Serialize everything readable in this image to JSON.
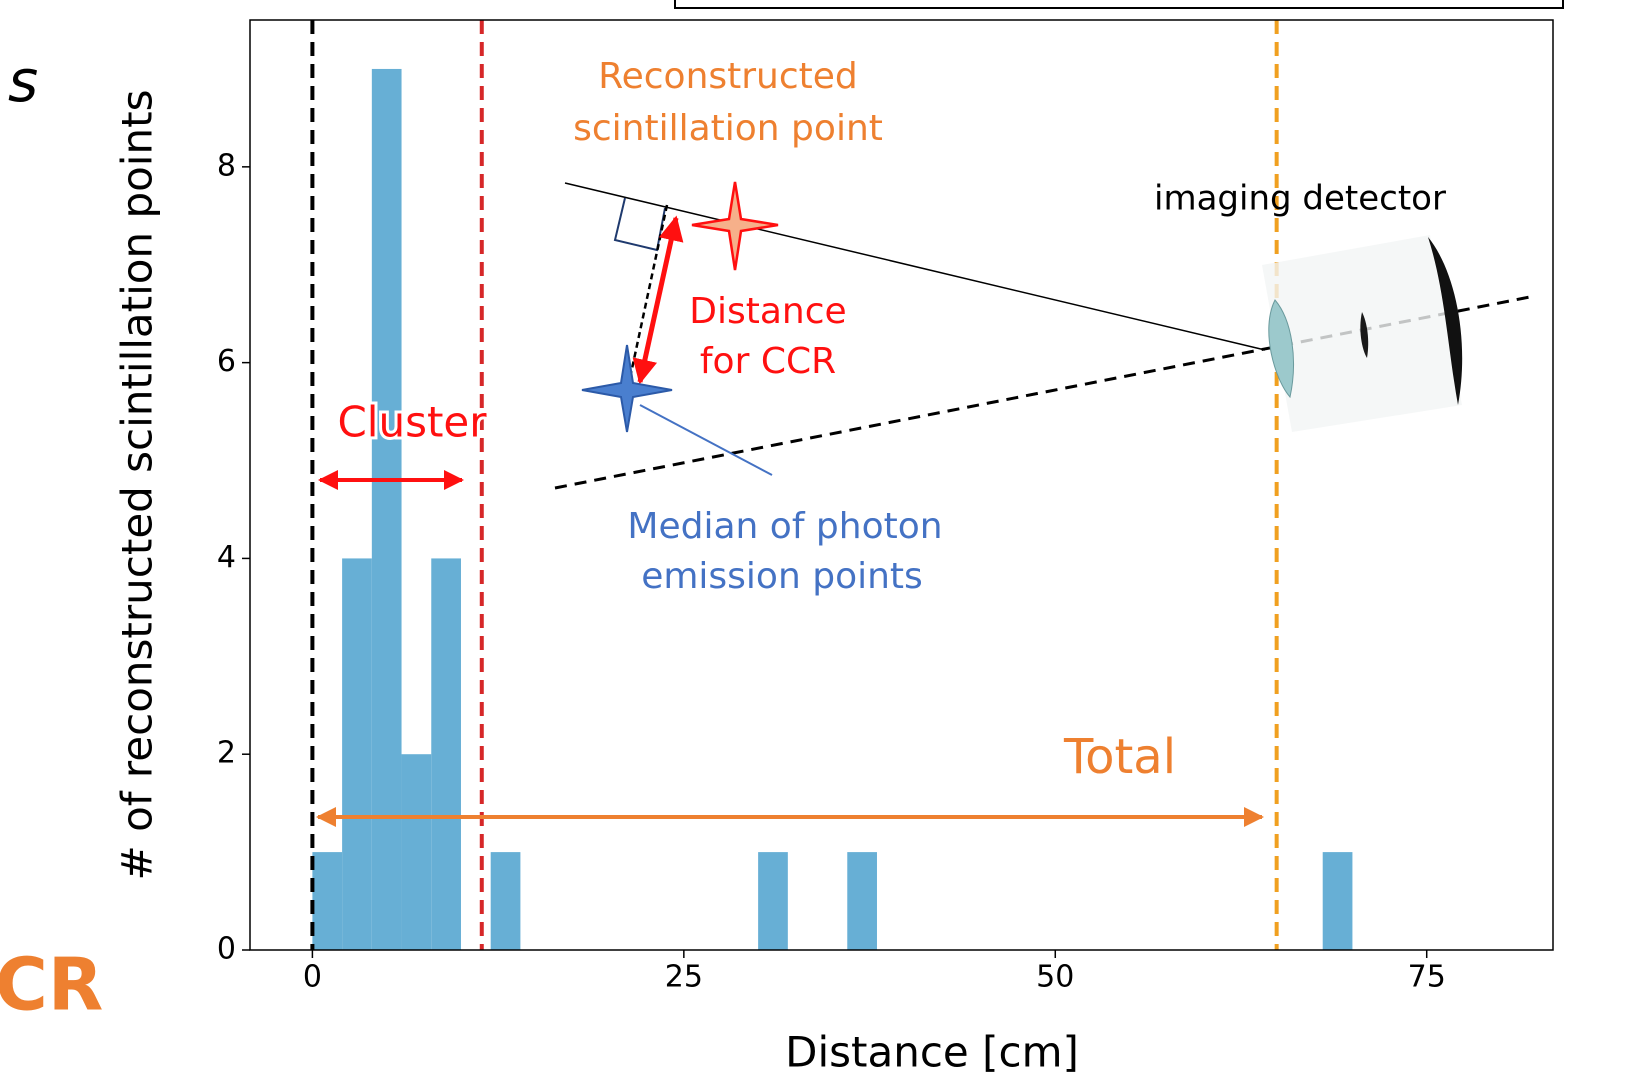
{
  "chart_data": {
    "type": "histogram",
    "xlabel": "Distance [cm]",
    "ylabel": "# of reconstructed scintillation points",
    "bins": [
      0,
      2,
      4,
      6,
      8,
      10,
      12,
      14,
      16,
      18,
      20,
      22,
      24,
      26,
      28,
      30,
      32,
      34,
      36,
      38,
      40,
      42,
      44,
      46,
      48,
      50,
      52,
      54,
      56,
      58,
      60,
      62,
      64,
      66,
      68,
      70
    ],
    "values": [
      1,
      4,
      9,
      2,
      4,
      0,
      1,
      0,
      0,
      0,
      0,
      0,
      0,
      0,
      0,
      1,
      0,
      0,
      1,
      0,
      0,
      0,
      0,
      0,
      0,
      0,
      0,
      0,
      0,
      0,
      0,
      0,
      0,
      0,
      1
    ],
    "color": "#67afd5",
    "xlim": [
      -4.2,
      83.5
    ],
    "ylim": [
      0,
      9.5
    ],
    "xticks": [
      0,
      25,
      50,
      75
    ],
    "yticks": [
      0,
      2,
      4,
      6,
      8
    ],
    "vlines": [
      {
        "value": 0,
        "color": "#000000"
      },
      {
        "value": 11.4,
        "color": "#d62728"
      },
      {
        "value": 64.9,
        "color": "#f0a020"
      }
    ],
    "annotations": {
      "cluster": "Cluster",
      "total": "Total",
      "reconstructed": [
        "Reconstructed",
        "scintillation point"
      ],
      "distance": [
        "Distance",
        "for CCR"
      ],
      "median": [
        "Median of photon",
        "emission points"
      ],
      "detector": "imaging detector"
    },
    "fragments": [
      "s",
      "CR"
    ]
  }
}
